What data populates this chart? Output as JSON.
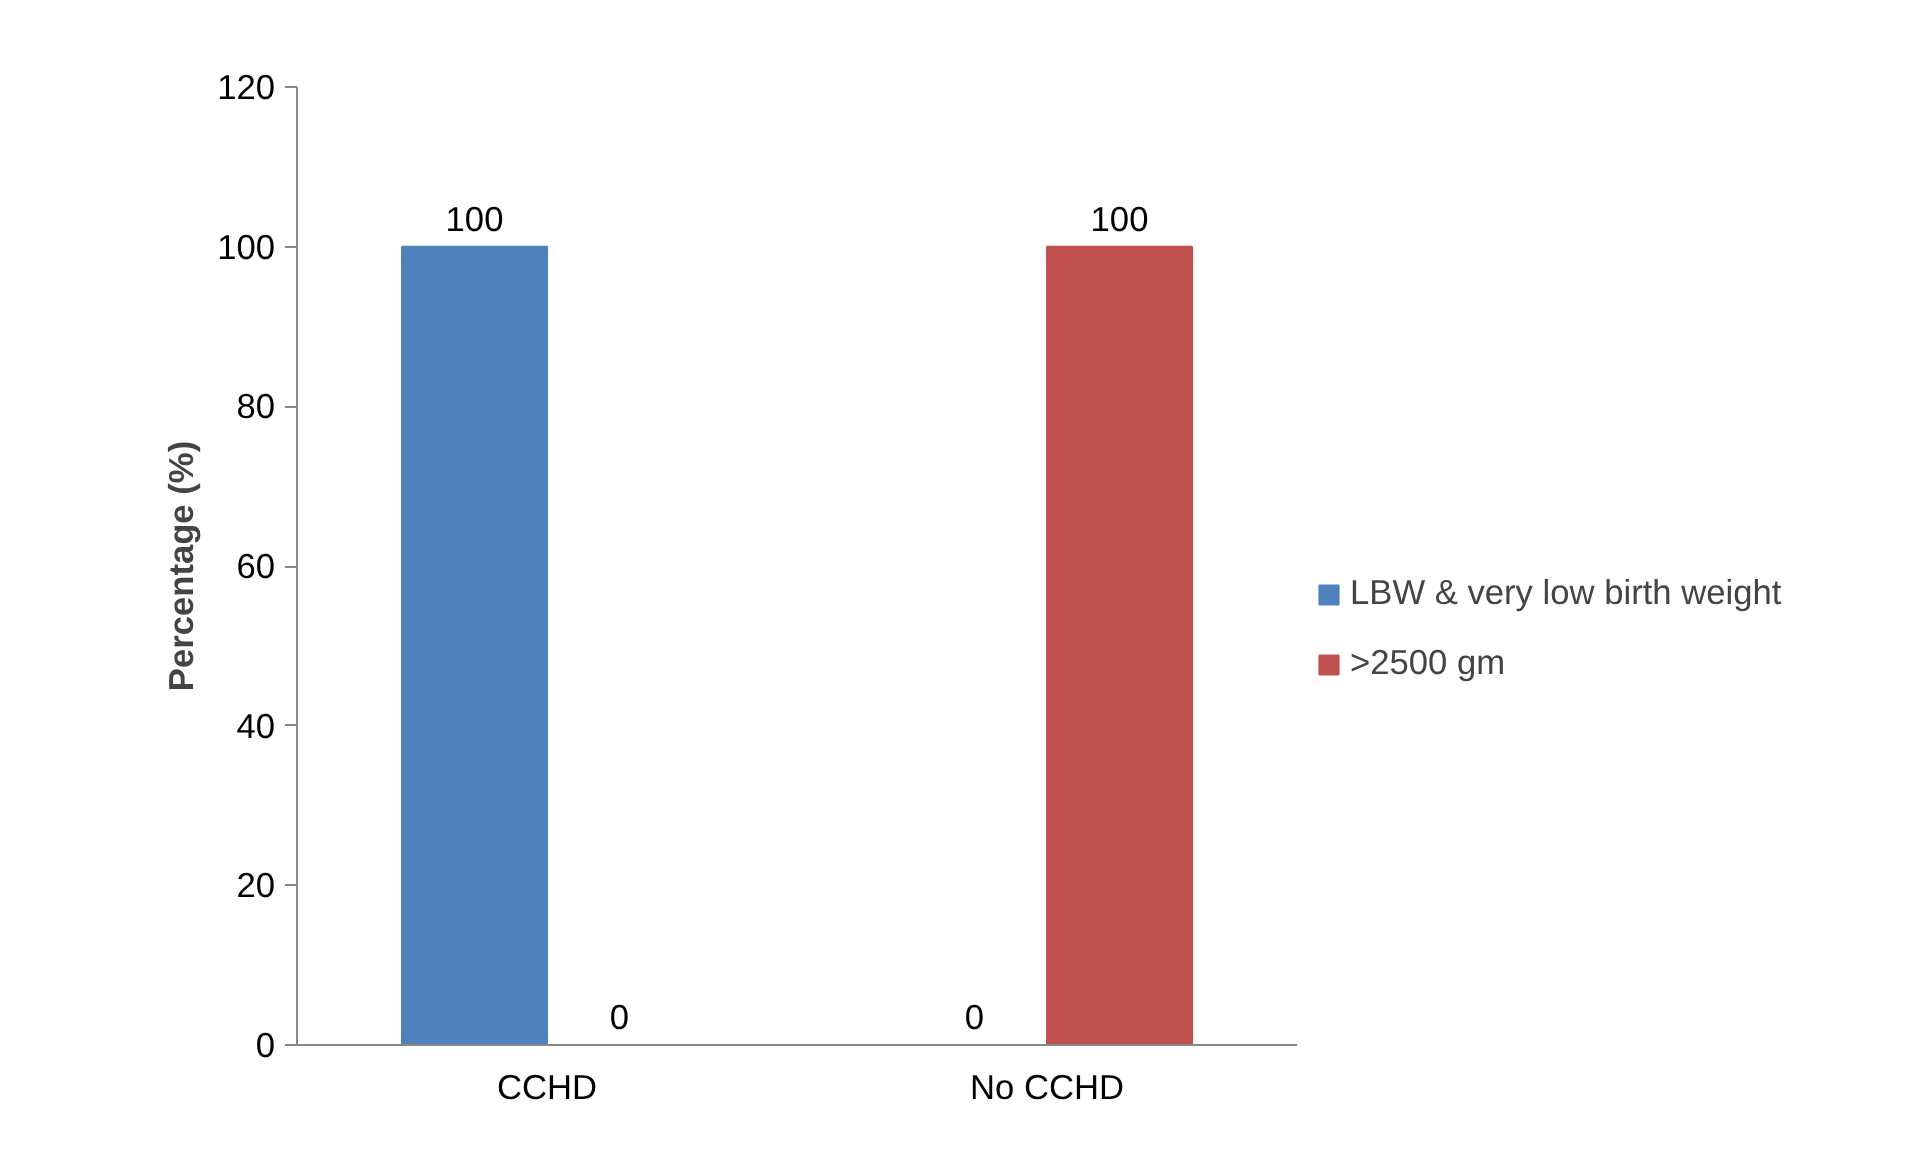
{
  "chart_data": {
    "type": "bar",
    "ylabel": "Percentage (%)",
    "categories": [
      "CCHD",
      "No CCHD"
    ],
    "series": [
      {
        "name": "LBW & very low birth weight",
        "color": "#4f81bd",
        "values": [
          100,
          0
        ]
      },
      {
        "name": ">2500 gm",
        "color": "#c0504d",
        "values": [
          0,
          100
        ]
      }
    ],
    "ylim": [
      0,
      120
    ],
    "yticks": [
      0,
      20,
      40,
      60,
      80,
      100,
      120
    ],
    "grid": false,
    "legend": "right",
    "data_labels": true
  }
}
